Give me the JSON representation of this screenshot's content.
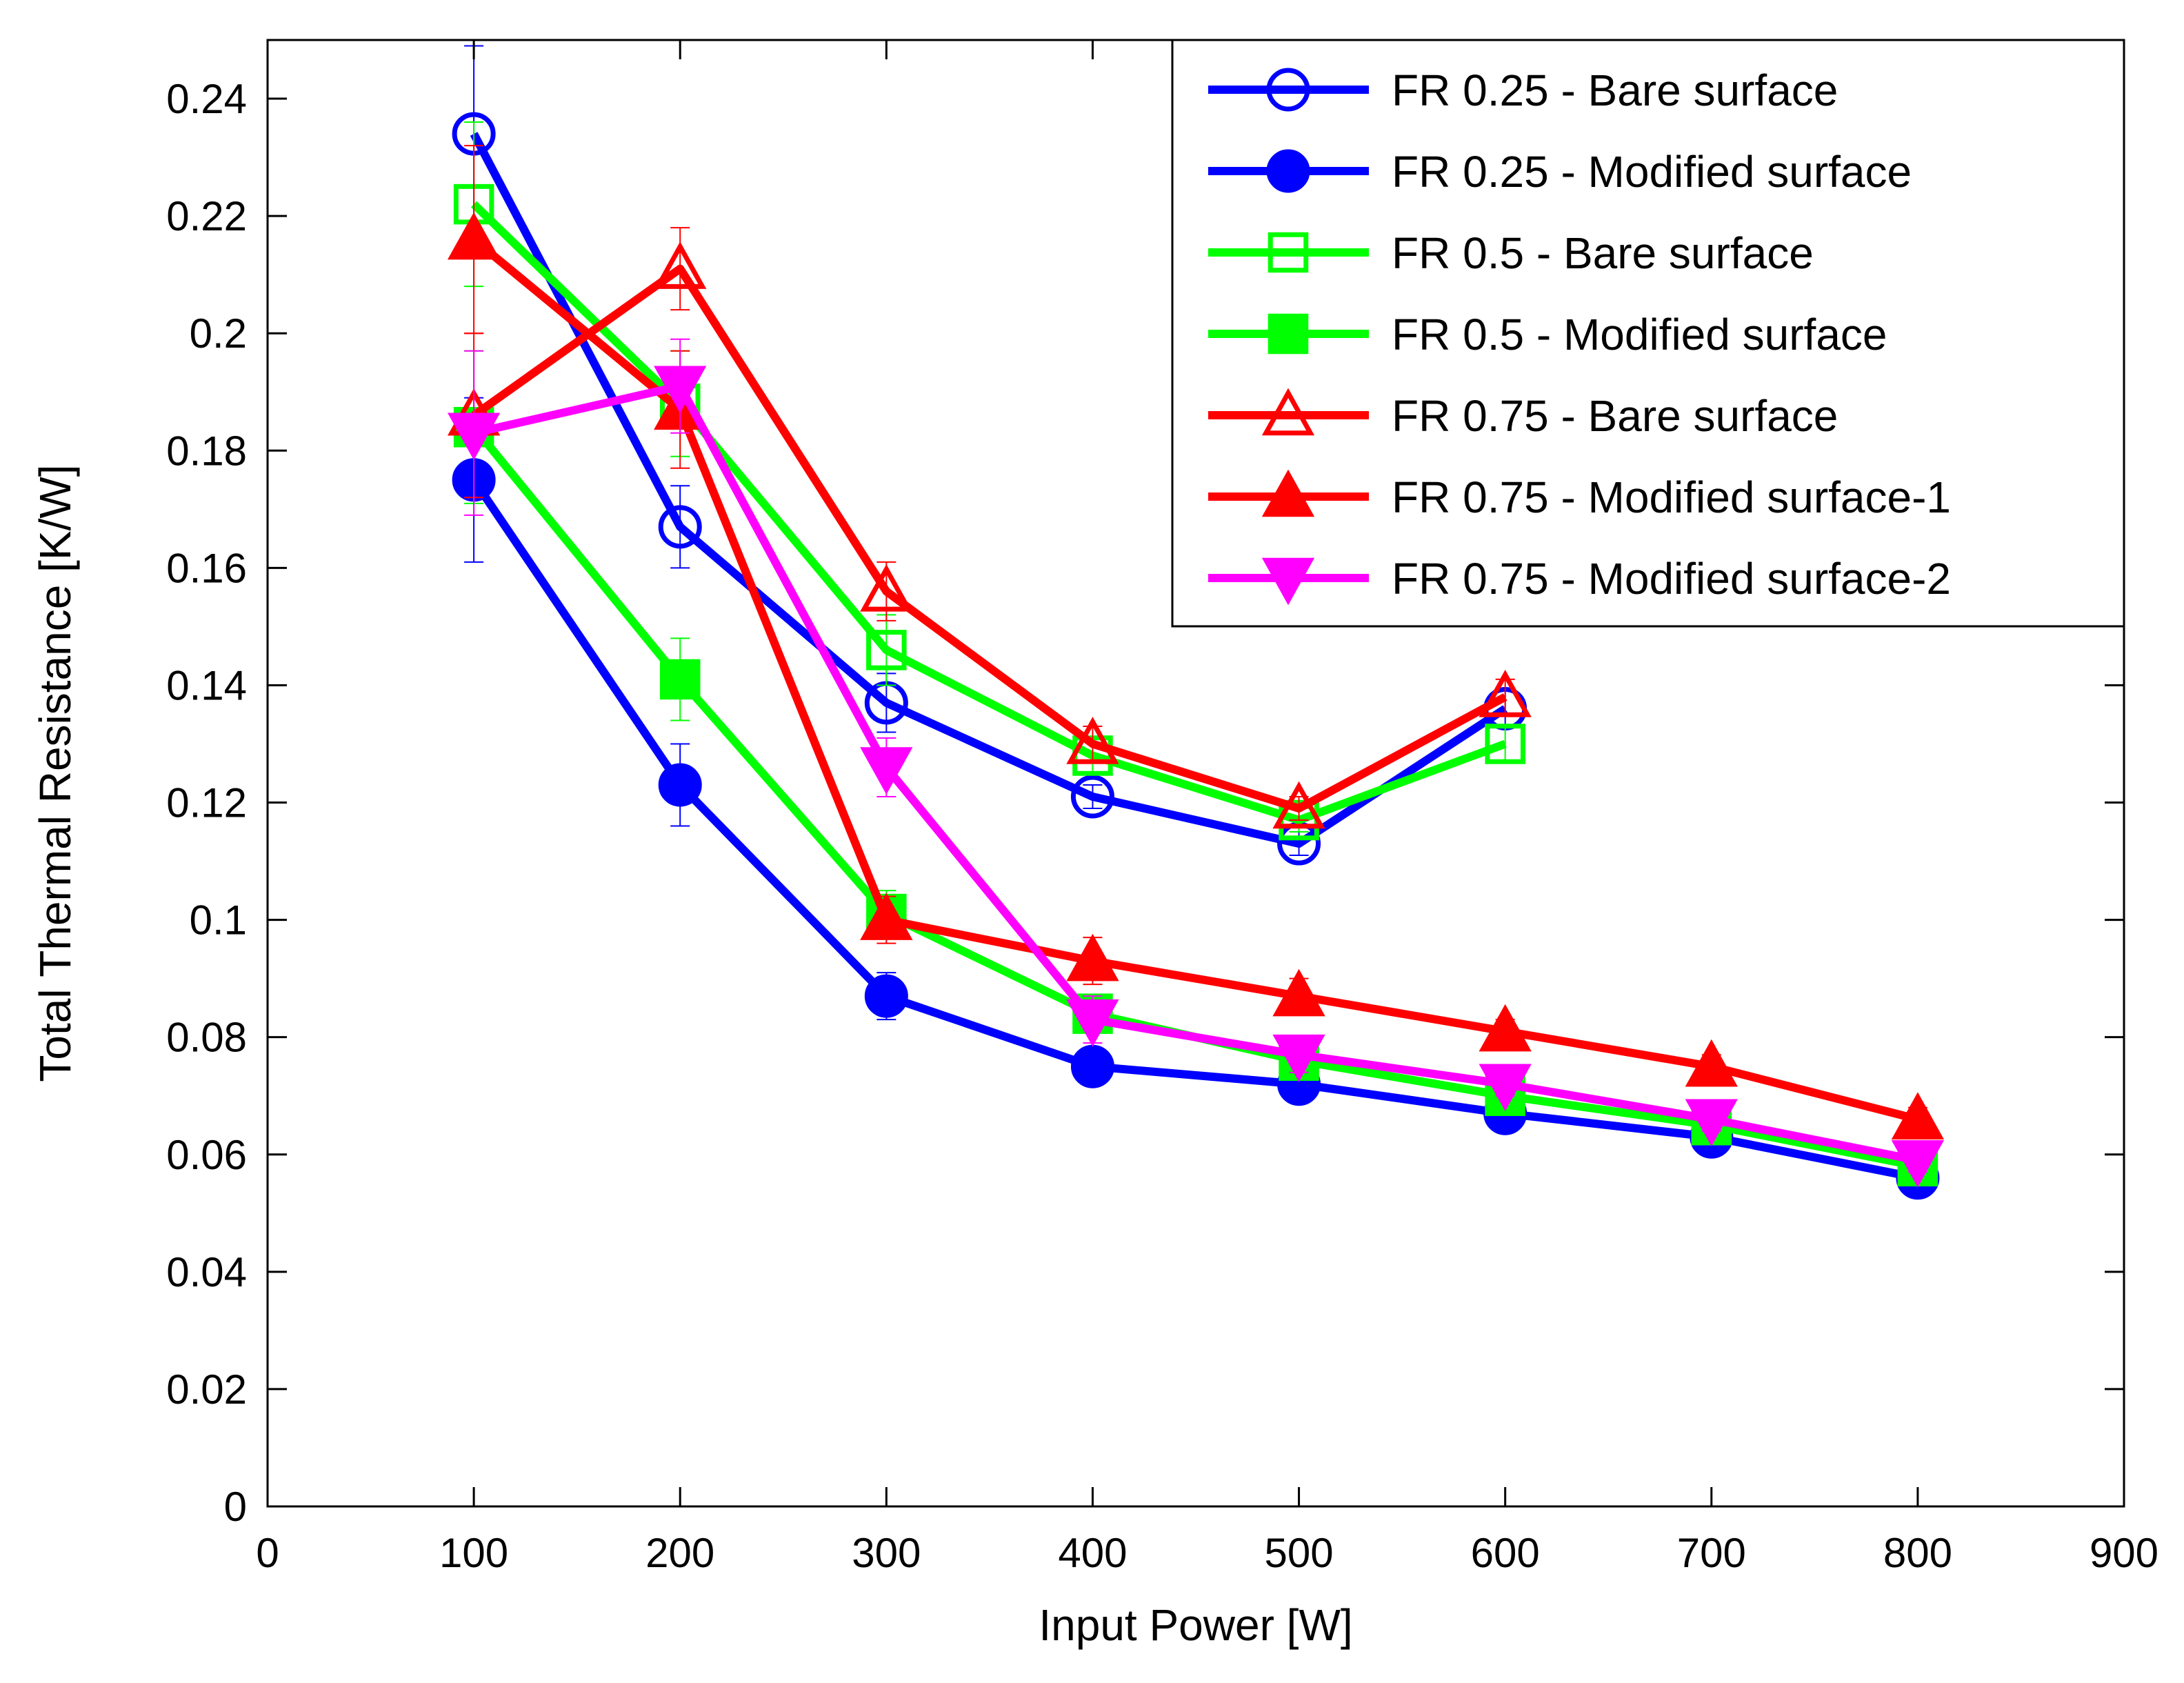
{
  "chart_data": {
    "type": "line",
    "title": "",
    "xlabel": "Input Power [W]",
    "ylabel": "Total Thermal Resistance [K/W]",
    "xlim": [
      0,
      900
    ],
    "ylim": [
      0,
      0.25
    ],
    "x_ticks": [
      0,
      100,
      200,
      300,
      400,
      500,
      600,
      700,
      800,
      900
    ],
    "x_tick_labels": [
      "0",
      "100",
      "200",
      "300",
      "400",
      "500",
      "600",
      "700",
      "800",
      "900"
    ],
    "y_ticks": [
      0,
      0.02,
      0.04,
      0.06,
      0.08,
      0.1,
      0.12,
      0.14,
      0.16,
      0.18,
      0.2,
      0.22,
      0.24
    ],
    "y_tick_labels": [
      "0",
      "0.02",
      "0.04",
      "0.06",
      "0.08",
      "0.1",
      "0.12",
      "0.14",
      "0.16",
      "0.18",
      "0.2",
      "0.22",
      "0.24"
    ],
    "grid": false,
    "legend_position": "top-right",
    "series": [
      {
        "name": "FR 0.25 - Bare surface",
        "color": "#0000ff",
        "marker": "circle",
        "filled": false,
        "x": [
          100,
          200,
          300,
          400,
          500,
          600
        ],
        "y": [
          0.234,
          0.167,
          0.137,
          0.121,
          0.113,
          0.136
        ],
        "err": [
          0.015,
          0.007,
          0.005,
          0.002,
          0.002,
          0.003
        ]
      },
      {
        "name": "FR 0.25 - Modified surface",
        "color": "#0000ff",
        "marker": "circle",
        "filled": true,
        "x": [
          100,
          200,
          300,
          400,
          500,
          600,
          700,
          800
        ],
        "y": [
          0.175,
          0.123,
          0.087,
          0.075,
          0.072,
          0.067,
          0.063,
          0.056
        ],
        "err": [
          0.014,
          0.007,
          0.004,
          0.003,
          0.002,
          0.002,
          0.002,
          0.002
        ]
      },
      {
        "name": "FR 0.5 - Bare surface",
        "color": "#00ff00",
        "marker": "square",
        "filled": false,
        "x": [
          100,
          200,
          300,
          400,
          500,
          600
        ],
        "y": [
          0.222,
          0.188,
          0.146,
          0.128,
          0.117,
          0.13
        ],
        "err": [
          0.014,
          0.009,
          0.006,
          0.003,
          0.002,
          0.003
        ]
      },
      {
        "name": "FR 0.5 - Modified surface",
        "color": "#00ff00",
        "marker": "square",
        "filled": true,
        "x": [
          100,
          200,
          300,
          400,
          500,
          600,
          700,
          800
        ],
        "y": [
          0.184,
          0.141,
          0.101,
          0.084,
          0.076,
          0.07,
          0.065,
          0.058
        ],
        "err": [
          0.013,
          0.007,
          0.004,
          0.003,
          0.002,
          0.002,
          0.002,
          0.002
        ]
      },
      {
        "name": "FR 0.75 - Bare surface",
        "color": "#ff0000",
        "marker": "triangle-up",
        "filled": false,
        "x": [
          100,
          200,
          300,
          400,
          500,
          600
        ],
        "y": [
          0.186,
          0.211,
          0.156,
          0.13,
          0.119,
          0.138
        ],
        "err": [
          0.014,
          0.007,
          0.005,
          0.003,
          0.002,
          0.003
        ]
      },
      {
        "name": "FR 0.75 - Modified surface-1",
        "color": "#ff0000",
        "marker": "triangle-up",
        "filled": true,
        "x": [
          100,
          200,
          300,
          400,
          500,
          600,
          700,
          800
        ],
        "y": [
          0.216,
          0.187,
          0.1,
          0.093,
          0.087,
          0.081,
          0.075,
          0.066
        ],
        "err": [
          0.016,
          0.01,
          0.004,
          0.004,
          0.003,
          0.002,
          0.002,
          0.002
        ]
      },
      {
        "name": "FR 0.75 - Modified surface-2",
        "color": "#ff00ff",
        "marker": "triangle-down",
        "filled": true,
        "x": [
          100,
          200,
          300,
          400,
          500,
          600,
          700,
          800
        ],
        "y": [
          0.183,
          0.191,
          0.126,
          0.083,
          0.077,
          0.072,
          0.066,
          0.059
        ],
        "err": [
          0.014,
          0.008,
          0.005,
          0.004,
          0.003,
          0.002,
          0.002,
          0.002
        ]
      }
    ]
  }
}
